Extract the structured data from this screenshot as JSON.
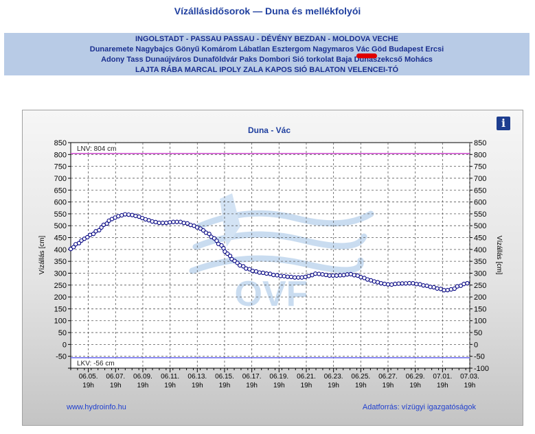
{
  "page_title": "Vízállásidősorok — Duna és mellékfolyói",
  "nav": {
    "rows": [
      [
        "INGOLSTADT - PASSAU",
        "PASSAU - DÉVÉNY",
        "BEZDAN - MOLDOVA VECHE"
      ],
      [
        "Dunaremete",
        "Nagybajcs",
        "Gönyű",
        "Komárom",
        "Lábatlan",
        "Esztergom",
        "Nagymaros",
        "Vác",
        "Göd",
        "Budapest",
        "Ercsi"
      ],
      [
        "Adony",
        "Tass",
        "Dunaújváros",
        "Dunaföldvár",
        "Paks",
        "Dombori",
        "Sió torkolat",
        "Baja",
        "Dunaszekcső",
        "Mohács"
      ],
      [
        "LAJTA",
        "RÁBA",
        "MARCAL",
        "IPOLY",
        "ZALA",
        "KAPOS",
        "SIÓ",
        "BALATON",
        "VELENCEI-TÓ"
      ]
    ],
    "selected": "Vác"
  },
  "info_icon": "info-icon",
  "footer": {
    "link": "www.hydroinfo.hu",
    "source": "Adatforrás: vízügyi igazgatóságok"
  },
  "colors": {
    "series": "#000080",
    "marker_fill": "#ffffff",
    "lnv_line": "#cc44cc",
    "lkv_line": "#6666ee",
    "title": "#1f3f9f"
  },
  "chart_data": {
    "type": "line",
    "title": "Duna - Vác",
    "ylabel": "Vízállás [cm]",
    "ylabel_right": "Vízállás [cm]",
    "ylim": [
      -100,
      850
    ],
    "yticks": [
      -100,
      -50,
      0,
      50,
      100,
      150,
      200,
      250,
      300,
      350,
      400,
      450,
      500,
      550,
      600,
      650,
      700,
      750,
      800,
      850
    ],
    "xlim": [
      "2024-06-04 12:00",
      "2024-07-03 19:00"
    ],
    "xticks": [
      {
        "date": "2024-06-05 19:00",
        "label": [
          "06.05.",
          "19h"
        ]
      },
      {
        "date": "2024-06-07 19:00",
        "label": [
          "06.07.",
          "19h"
        ]
      },
      {
        "date": "2024-06-09 19:00",
        "label": [
          "06.09.",
          "19h"
        ]
      },
      {
        "date": "2024-06-11 19:00",
        "label": [
          "06.11.",
          "19h"
        ]
      },
      {
        "date": "2024-06-13 19:00",
        "label": [
          "06.13.",
          "19h"
        ]
      },
      {
        "date": "2024-06-15 19:00",
        "label": [
          "06.15.",
          "19h"
        ]
      },
      {
        "date": "2024-06-17 19:00",
        "label": [
          "06.17.",
          "19h"
        ]
      },
      {
        "date": "2024-06-19 19:00",
        "label": [
          "06.19.",
          "19h"
        ]
      },
      {
        "date": "2024-06-21 19:00",
        "label": [
          "06.21.",
          "19h"
        ]
      },
      {
        "date": "2024-06-23 19:00",
        "label": [
          "06.23.",
          "19h"
        ]
      },
      {
        "date": "2024-06-25 19:00",
        "label": [
          "06.25.",
          "19h"
        ]
      },
      {
        "date": "2024-06-27 19:00",
        "label": [
          "06.27.",
          "19h"
        ]
      },
      {
        "date": "2024-06-29 19:00",
        "label": [
          "06.29.",
          "19h"
        ]
      },
      {
        "date": "2024-07-01 19:00",
        "label": [
          "07.01.",
          "19h"
        ]
      },
      {
        "date": "2024-07-03 19:00",
        "label": [
          "07.03.",
          "19h"
        ]
      }
    ],
    "grid": true,
    "reference_lines": [
      {
        "label": "LNV: 804 cm",
        "value": 804
      },
      {
        "label": "LKV: -56 cm",
        "value": -56
      }
    ],
    "watermark": "OVF",
    "series": [
      {
        "x": [
          "2024-06-04 12:00",
          "2024-06-05 00:00",
          "2024-06-05 12:00",
          "2024-06-06 00:00",
          "2024-06-06 12:00",
          "2024-06-07 00:00",
          "2024-06-07 12:00",
          "2024-06-08 00:00",
          "2024-06-08 12:00",
          "2024-06-09 00:00",
          "2024-06-09 12:00",
          "2024-06-10 00:00",
          "2024-06-10 12:00",
          "2024-06-11 00:00",
          "2024-06-11 12:00",
          "2024-06-12 00:00",
          "2024-06-12 12:00",
          "2024-06-13 00:00",
          "2024-06-13 12:00",
          "2024-06-14 00:00",
          "2024-06-14 12:00",
          "2024-06-15 00:00",
          "2024-06-15 12:00",
          "2024-06-16 00:00",
          "2024-06-16 12:00",
          "2024-06-17 00:00",
          "2024-06-17 12:00",
          "2024-06-18 00:00",
          "2024-06-18 12:00",
          "2024-06-19 00:00",
          "2024-06-19 12:00",
          "2024-06-20 00:00",
          "2024-06-20 12:00",
          "2024-06-21 00:00",
          "2024-06-21 12:00",
          "2024-06-22 00:00",
          "2024-06-22 12:00",
          "2024-06-23 00:00",
          "2024-06-23 12:00",
          "2024-06-24 00:00",
          "2024-06-24 12:00",
          "2024-06-25 00:00",
          "2024-06-25 12:00",
          "2024-06-26 00:00",
          "2024-06-26 12:00",
          "2024-06-27 00:00",
          "2024-06-27 12:00",
          "2024-06-28 00:00",
          "2024-06-28 12:00",
          "2024-06-29 00:00",
          "2024-06-29 12:00",
          "2024-06-30 00:00",
          "2024-06-30 12:00",
          "2024-07-01 00:00",
          "2024-07-01 12:00",
          "2024-07-02 00:00",
          "2024-07-02 12:00",
          "2024-07-03 00:00",
          "2024-07-03 12:00",
          "2024-07-03 19:00"
        ],
        "values": [
          402,
          425,
          445,
          462,
          480,
          505,
          528,
          540,
          548,
          545,
          538,
          527,
          518,
          512,
          512,
          516,
          516,
          510,
          500,
          488,
          470,
          447,
          418,
          382,
          352,
          332,
          318,
          308,
          302,
          298,
          292,
          288,
          285,
          282,
          282,
          288,
          298,
          295,
          290,
          290,
          292,
          296,
          290,
          280,
          270,
          262,
          255,
          252,
          256,
          257,
          258,
          254,
          248,
          242,
          235,
          228,
          232,
          246,
          256,
          262
        ]
      }
    ]
  }
}
